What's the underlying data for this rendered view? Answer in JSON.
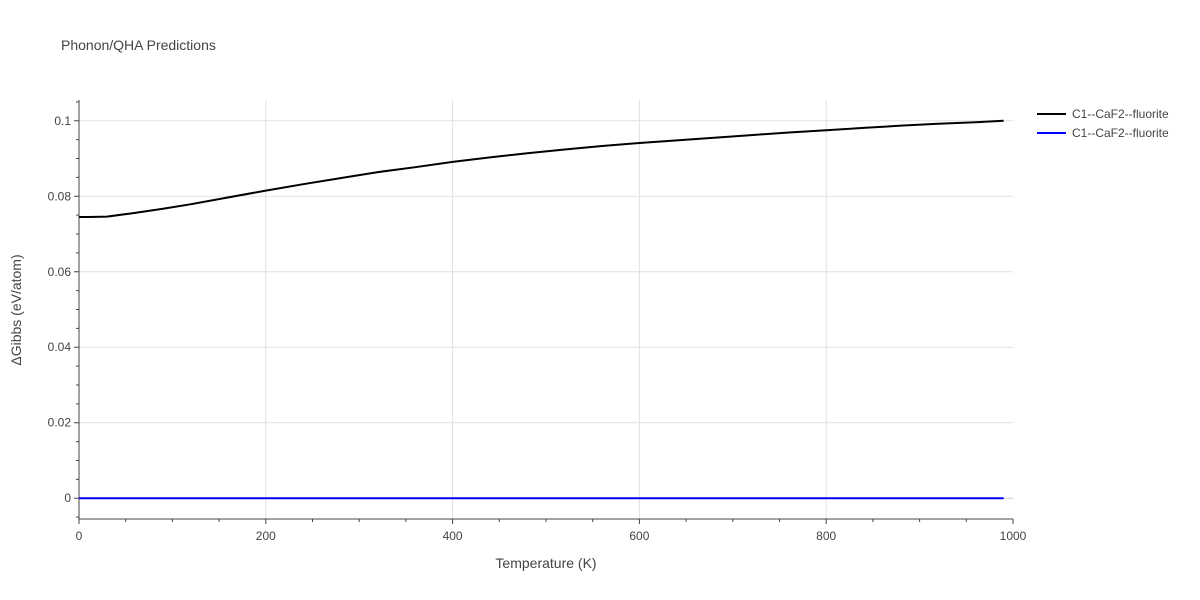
{
  "chart_data": {
    "type": "line",
    "title": "Phonon/QHA Predictions",
    "xlabel": "Temperature (K)",
    "ylabel": "ΔGibbs (eV/atom)",
    "xlim": [
      0,
      1000
    ],
    "ylim": [
      -0.0055,
      0.1055
    ],
    "xticks": [
      0,
      200,
      400,
      600,
      800,
      1000
    ],
    "xtick_labels": [
      "0",
      "200",
      "400",
      "600",
      "800",
      "1000"
    ],
    "yticks": [
      0,
      0.02,
      0.04,
      0.06,
      0.08,
      0.1
    ],
    "ytick_labels": [
      "0",
      "0.02",
      "0.04",
      "0.06",
      "0.08",
      "0.1"
    ],
    "grid": true,
    "legend_position": "top-right",
    "series": [
      {
        "name": "C1--CaF2--fluorite",
        "color": "#000000",
        "x": [
          0,
          10,
          30,
          60,
          90,
          120,
          160,
          200,
          240,
          280,
          320,
          360,
          400,
          440,
          480,
          520,
          560,
          600,
          640,
          680,
          720,
          760,
          800,
          840,
          880,
          920,
          960,
          990
        ],
        "y": [
          0.0745,
          0.0745,
          0.0746,
          0.0756,
          0.0767,
          0.0779,
          0.0797,
          0.0815,
          0.0832,
          0.0848,
          0.0864,
          0.0877,
          0.0891,
          0.0903,
          0.0914,
          0.0924,
          0.0933,
          0.0941,
          0.0948,
          0.0955,
          0.0962,
          0.0969,
          0.0975,
          0.0981,
          0.0987,
          0.0992,
          0.0996,
          0.1
        ]
      },
      {
        "name": "C1--CaF2--fluorite",
        "color": "#0000ff",
        "x": [
          0,
          990
        ],
        "y": [
          0,
          0
        ]
      }
    ]
  }
}
